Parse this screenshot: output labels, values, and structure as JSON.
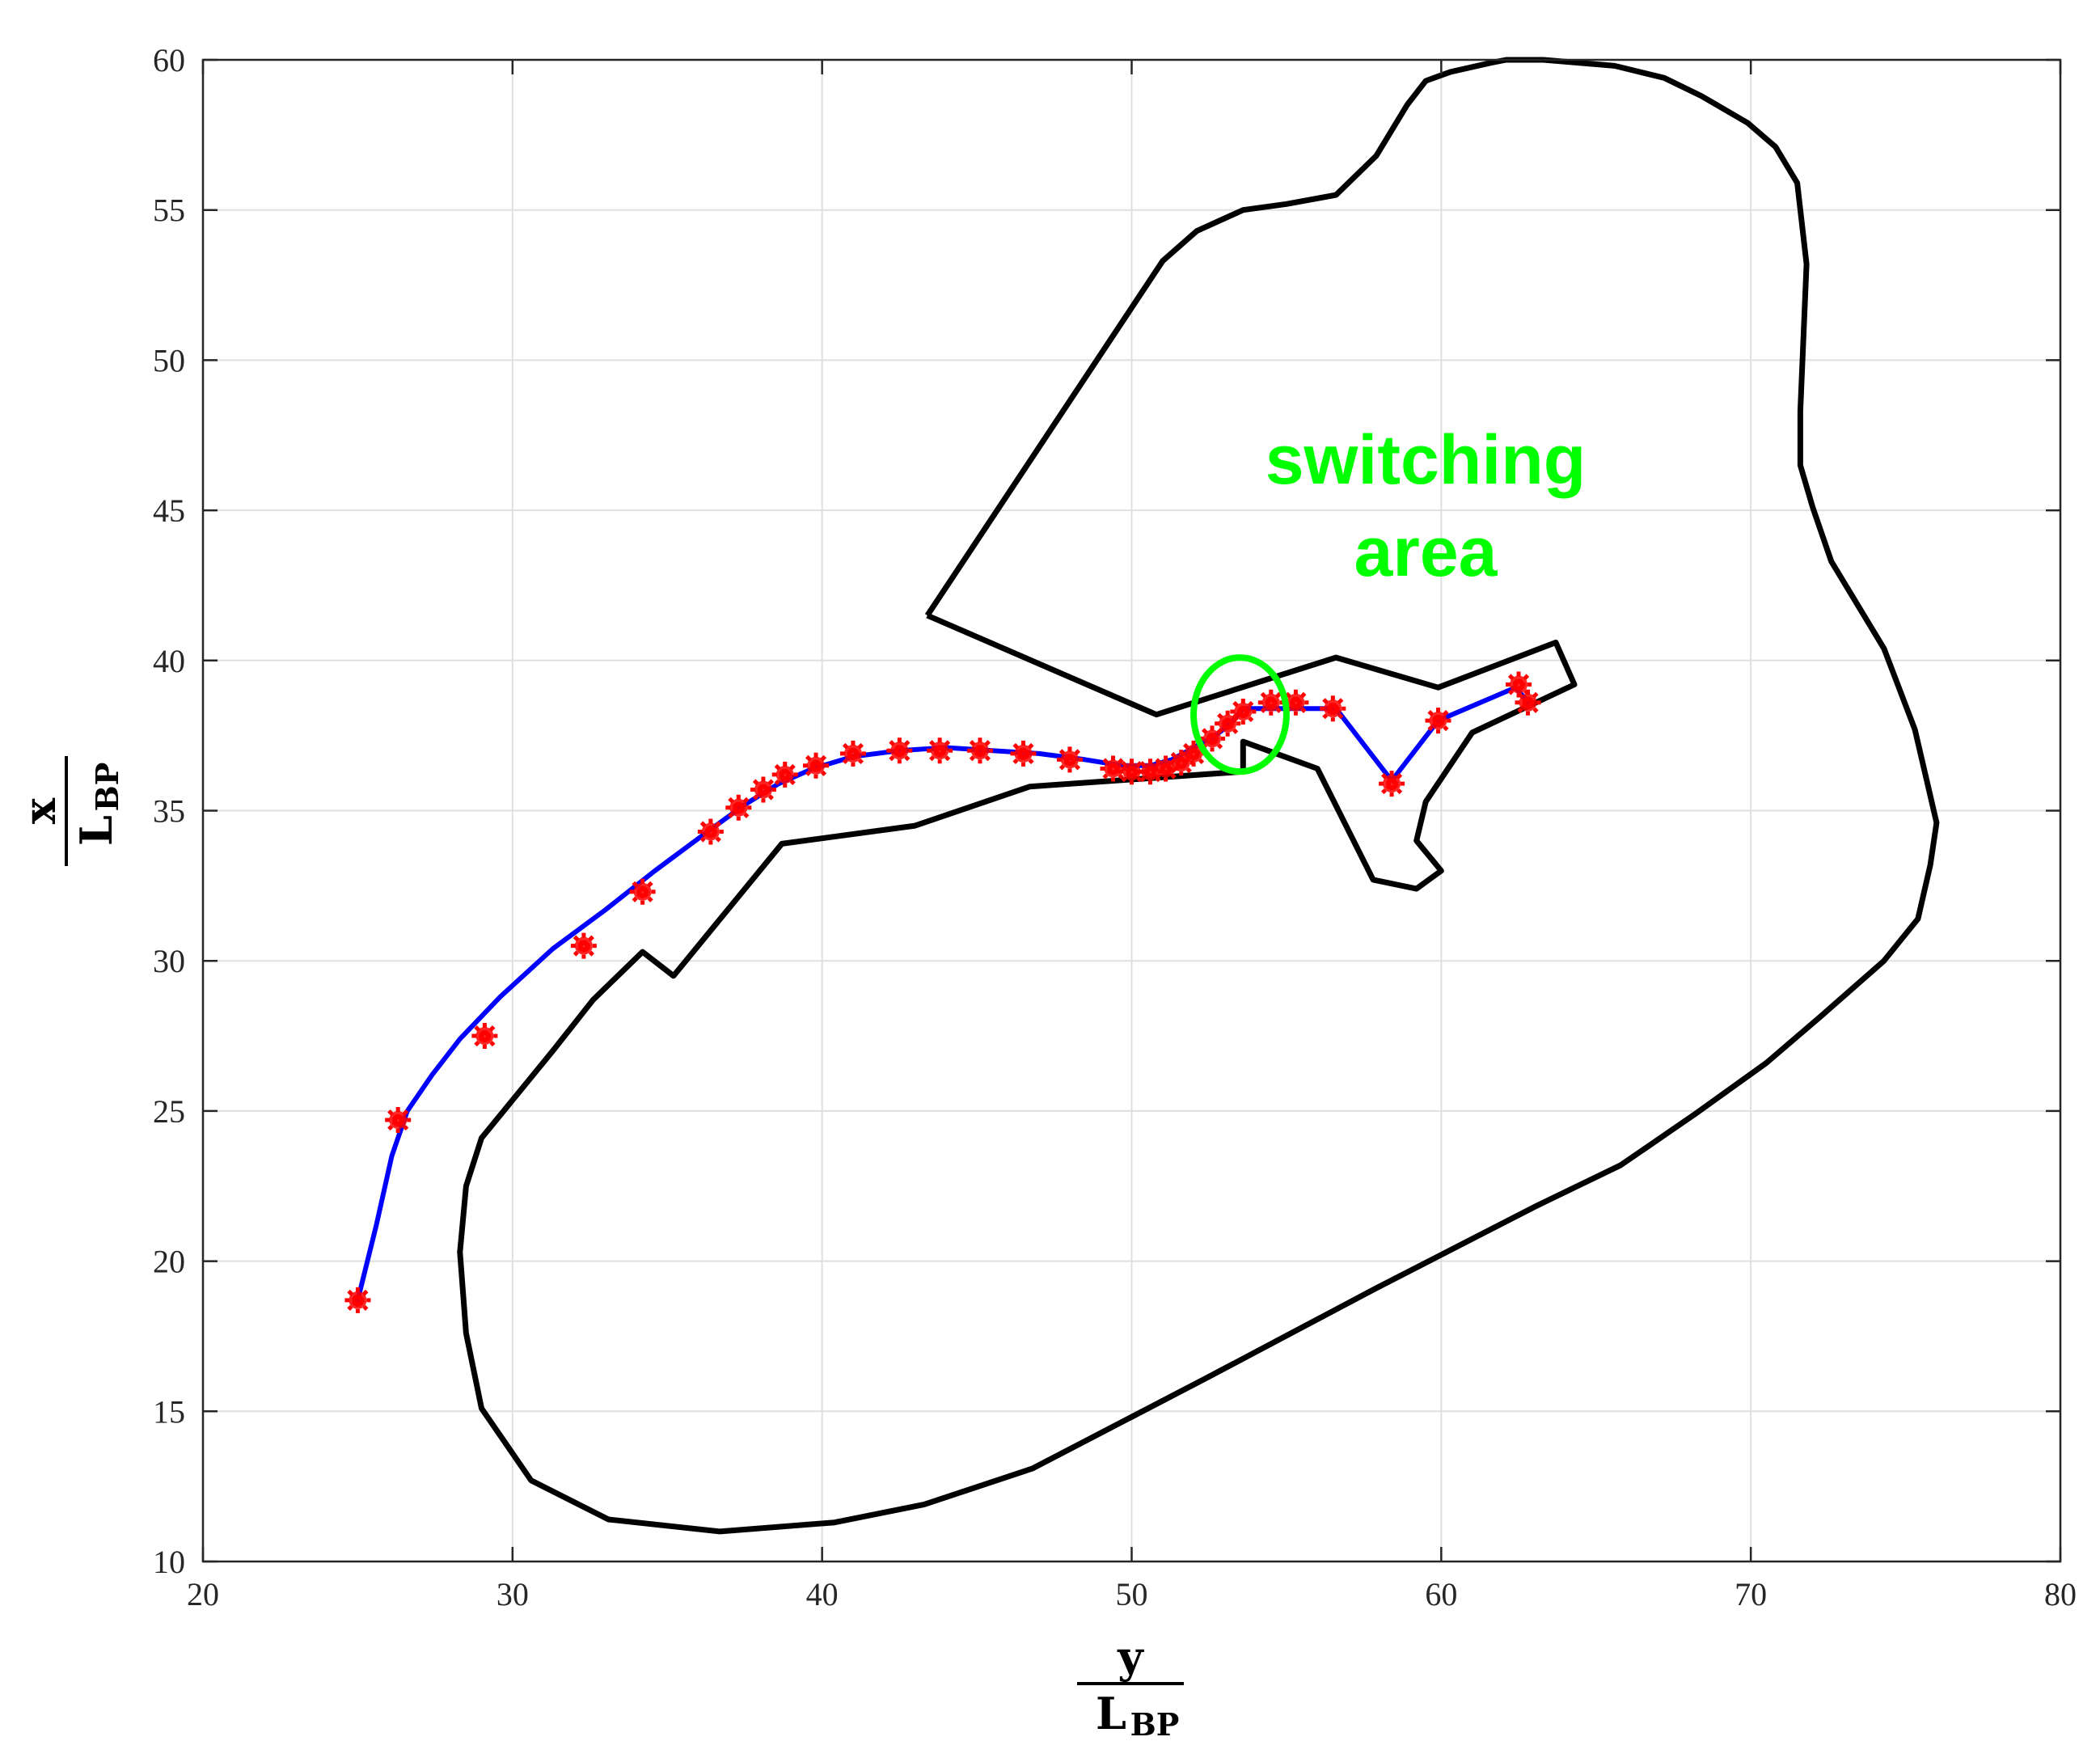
{
  "chart_data": {
    "type": "line",
    "xlim": [
      20,
      80
    ],
    "ylim": [
      10,
      60
    ],
    "xticks": [
      20,
      30,
      40,
      50,
      60,
      70,
      80
    ],
    "yticks": [
      10,
      15,
      20,
      25,
      30,
      35,
      40,
      45,
      50,
      55,
      60
    ],
    "xlabel": {
      "numerator": "y",
      "denominator": "L",
      "subscript": "BP"
    },
    "ylabel": {
      "numerator": "x",
      "denominator": "L",
      "subscript": "BP"
    },
    "grid": true,
    "legend": "none",
    "annotation": {
      "lines": [
        "switching",
        "area"
      ],
      "color": "#00ff00"
    },
    "switching_marker": {
      "center": [
        53.5,
        38.2
      ],
      "radius_x": 1.5,
      "radius_y": 1.9,
      "color": "#00ff00"
    },
    "colors": {
      "boundary": "#000000",
      "path": "#0000ff",
      "waypoints": "#ff0000"
    },
    "series": [
      {
        "type": "boundary",
        "points": [
          [
            43.4,
            41.5
          ],
          [
            50.8,
            38.2
          ],
          [
            56.6,
            40.1
          ],
          [
            59.9,
            39.1
          ],
          [
            63.7,
            40.6
          ],
          [
            64.3,
            39.2
          ],
          [
            61.0,
            37.6
          ],
          [
            59.5,
            35.3
          ],
          [
            59.2,
            34.0
          ],
          [
            60.0,
            33.0
          ],
          [
            59.2,
            32.4
          ],
          [
            57.8,
            32.7
          ],
          [
            56.0,
            36.4
          ],
          [
            53.6,
            37.3
          ],
          [
            53.6,
            36.3
          ],
          [
            46.7,
            35.8
          ],
          [
            43.0,
            34.5
          ],
          [
            38.7,
            33.9
          ],
          [
            35.2,
            29.5
          ],
          [
            34.2,
            30.3
          ],
          [
            32.6,
            28.7
          ],
          [
            31.3,
            27.0
          ],
          [
            29.0,
            24.1
          ],
          [
            28.5,
            22.5
          ],
          [
            28.3,
            20.3
          ],
          [
            28.5,
            17.6
          ],
          [
            29.0,
            15.1
          ],
          [
            30.6,
            12.7
          ],
          [
            33.1,
            11.4
          ],
          [
            36.7,
            11.0
          ],
          [
            40.4,
            11.3
          ],
          [
            43.3,
            11.9
          ],
          [
            46.8,
            13.1
          ],
          [
            52.4,
            16.1
          ],
          [
            57.9,
            19.1
          ],
          [
            63.0,
            21.8
          ],
          [
            65.8,
            23.2
          ],
          [
            68.2,
            24.9
          ],
          [
            70.5,
            26.6
          ],
          [
            72.2,
            28.1
          ],
          [
            74.3,
            30.0
          ],
          [
            75.4,
            31.4
          ],
          [
            75.8,
            33.2
          ],
          [
            76.0,
            34.6
          ],
          [
            75.3,
            37.7
          ],
          [
            74.3,
            40.4
          ],
          [
            72.6,
            43.3
          ],
          [
            72.0,
            45.1
          ],
          [
            71.6,
            46.5
          ],
          [
            71.6,
            48.3
          ],
          [
            71.8,
            53.2
          ],
          [
            71.5,
            55.9
          ],
          [
            70.8,
            57.1
          ],
          [
            69.9,
            57.9
          ],
          [
            68.4,
            58.8
          ],
          [
            67.2,
            59.4
          ],
          [
            65.6,
            59.8
          ],
          [
            63.3,
            60.0
          ],
          [
            62.1,
            60.0
          ],
          [
            61.6,
            59.9
          ],
          [
            60.3,
            59.6
          ],
          [
            59.5,
            59.3
          ],
          [
            58.9,
            58.5
          ],
          [
            57.9,
            56.8
          ],
          [
            56.6,
            55.5
          ],
          [
            55.0,
            55.2
          ],
          [
            53.6,
            55.0
          ],
          [
            52.1,
            54.3
          ],
          [
            51.0,
            53.3
          ],
          [
            43.4,
            41.5
          ]
        ]
      },
      {
        "type": "path",
        "points": [
          [
            25.0,
            18.7
          ],
          [
            25.6,
            21.2
          ],
          [
            26.1,
            23.5
          ],
          [
            26.6,
            25.0
          ],
          [
            27.4,
            26.2
          ],
          [
            28.3,
            27.4
          ],
          [
            29.6,
            28.8
          ],
          [
            31.3,
            30.4
          ],
          [
            33.0,
            31.7
          ],
          [
            34.6,
            33.0
          ],
          [
            36.3,
            34.3
          ],
          [
            37.5,
            35.2
          ],
          [
            38.6,
            35.9
          ],
          [
            39.7,
            36.4
          ],
          [
            41.0,
            36.8
          ],
          [
            42.5,
            37.0
          ],
          [
            44.0,
            37.1
          ],
          [
            45.5,
            37.0
          ],
          [
            47.0,
            36.9
          ],
          [
            48.5,
            36.7
          ],
          [
            49.7,
            36.5
          ],
          [
            50.6,
            36.5
          ],
          [
            51.3,
            36.7
          ],
          [
            52.0,
            37.1
          ],
          [
            52.7,
            37.5
          ],
          [
            53.2,
            37.9
          ],
          [
            53.6,
            38.4
          ],
          [
            54.4,
            38.4
          ],
          [
            55.3,
            38.4
          ],
          [
            56.6,
            38.4
          ],
          [
            58.4,
            36.0
          ],
          [
            59.9,
            38.0
          ],
          [
            62.4,
            39.1
          ],
          [
            62.9,
            38.5
          ]
        ]
      },
      {
        "type": "waypoints",
        "points": [
          [
            25.0,
            18.7
          ],
          [
            26.3,
            24.7
          ],
          [
            29.1,
            27.5
          ],
          [
            32.3,
            30.5
          ],
          [
            34.2,
            32.3
          ],
          [
            36.4,
            34.3
          ],
          [
            37.3,
            35.1
          ],
          [
            38.1,
            35.7
          ],
          [
            38.8,
            36.2
          ],
          [
            39.8,
            36.5
          ],
          [
            41.0,
            36.9
          ],
          [
            42.5,
            37.0
          ],
          [
            43.8,
            37.0
          ],
          [
            45.1,
            37.0
          ],
          [
            46.5,
            36.9
          ],
          [
            48.0,
            36.7
          ],
          [
            49.4,
            36.4
          ],
          [
            50.0,
            36.3
          ],
          [
            50.6,
            36.3
          ],
          [
            51.1,
            36.4
          ],
          [
            51.6,
            36.6
          ],
          [
            52.0,
            36.9
          ],
          [
            52.6,
            37.4
          ],
          [
            53.1,
            37.9
          ],
          [
            53.6,
            38.3
          ],
          [
            54.5,
            38.6
          ],
          [
            55.3,
            38.6
          ],
          [
            56.5,
            38.4
          ],
          [
            58.4,
            35.9
          ],
          [
            59.9,
            38.0
          ],
          [
            62.5,
            39.2
          ],
          [
            62.8,
            38.6
          ]
        ]
      }
    ]
  }
}
